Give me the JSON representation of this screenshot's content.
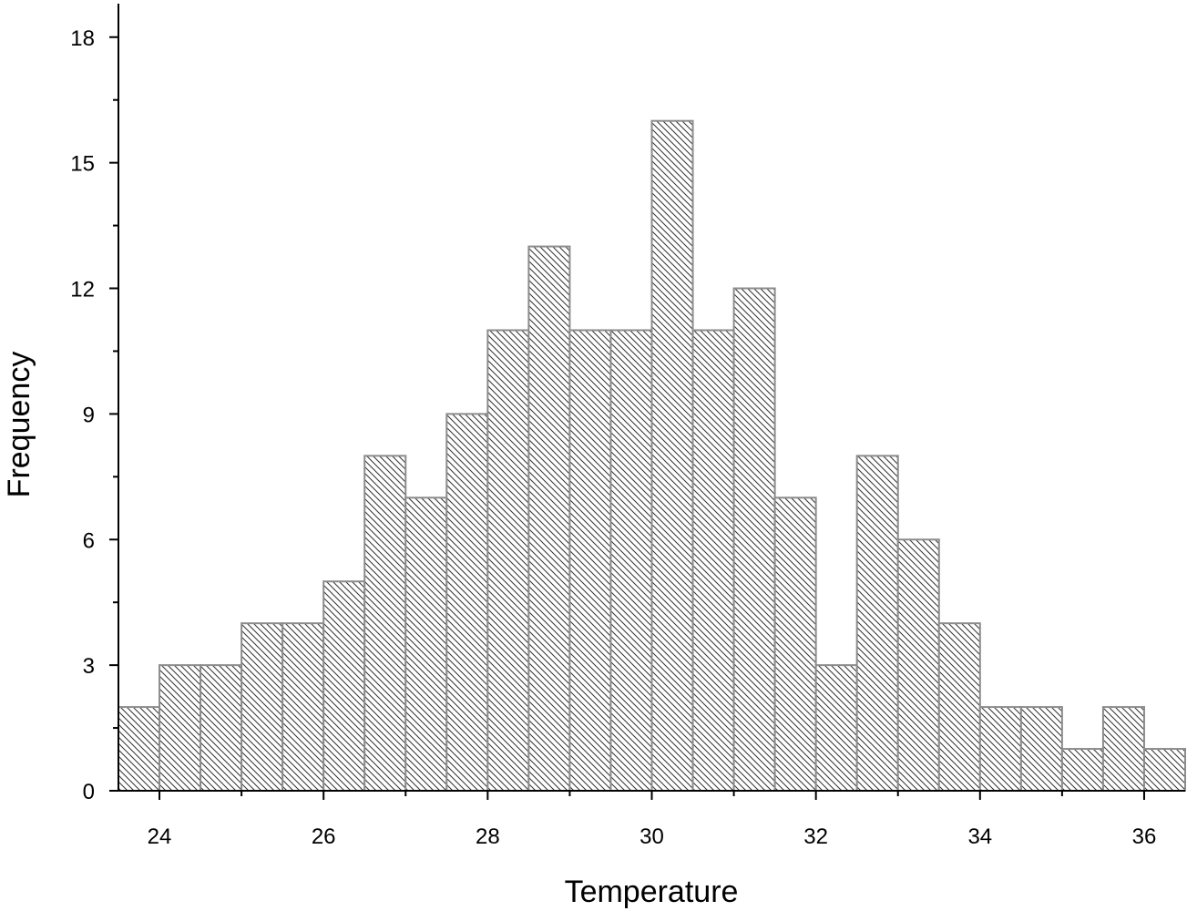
{
  "chart_data": {
    "type": "bar",
    "subtype": "histogram",
    "title": "",
    "xlabel": "Temperature",
    "ylabel": "Frequency",
    "xlim": [
      23.5,
      36.5
    ],
    "ylim": [
      0,
      18.8
    ],
    "xticks": [
      24,
      26,
      28,
      30,
      32,
      34,
      36
    ],
    "yticks": [
      0,
      3,
      6,
      9,
      12,
      15,
      18
    ],
    "bin_width": 0.5,
    "bins": [
      {
        "start": 23.5,
        "end": 24.0,
        "value": 2
      },
      {
        "start": 24.0,
        "end": 24.5,
        "value": 3
      },
      {
        "start": 24.5,
        "end": 25.0,
        "value": 3
      },
      {
        "start": 25.0,
        "end": 25.5,
        "value": 4
      },
      {
        "start": 25.5,
        "end": 26.0,
        "value": 4
      },
      {
        "start": 26.0,
        "end": 26.5,
        "value": 5
      },
      {
        "start": 26.5,
        "end": 27.0,
        "value": 8
      },
      {
        "start": 27.0,
        "end": 27.5,
        "value": 7
      },
      {
        "start": 27.5,
        "end": 28.0,
        "value": 9
      },
      {
        "start": 28.0,
        "end": 28.5,
        "value": 11
      },
      {
        "start": 28.5,
        "end": 29.0,
        "value": 13
      },
      {
        "start": 29.0,
        "end": 29.5,
        "value": 11
      },
      {
        "start": 29.5,
        "end": 30.0,
        "value": 11
      },
      {
        "start": 30.0,
        "end": 30.5,
        "value": 16
      },
      {
        "start": 30.5,
        "end": 31.0,
        "value": 11
      },
      {
        "start": 31.0,
        "end": 31.5,
        "value": 12
      },
      {
        "start": 31.5,
        "end": 32.0,
        "value": 7
      },
      {
        "start": 32.0,
        "end": 32.5,
        "value": 3
      },
      {
        "start": 32.5,
        "end": 33.0,
        "value": 8
      },
      {
        "start": 33.0,
        "end": 33.5,
        "value": 6
      },
      {
        "start": 33.5,
        "end": 34.0,
        "value": 4
      },
      {
        "start": 34.0,
        "end": 34.5,
        "value": 2
      },
      {
        "start": 34.5,
        "end": 35.0,
        "value": 2
      },
      {
        "start": 35.0,
        "end": 35.5,
        "value": 1
      },
      {
        "start": 35.5,
        "end": 36.0,
        "value": 2
      },
      {
        "start": 36.0,
        "end": 36.5,
        "value": 1
      }
    ],
    "grid": false,
    "legend": "none",
    "colors": {
      "bar_fill": "#ffffff",
      "bar_edge": "#8c8c8c",
      "hatch": "#333333",
      "axis": "#000000"
    }
  }
}
